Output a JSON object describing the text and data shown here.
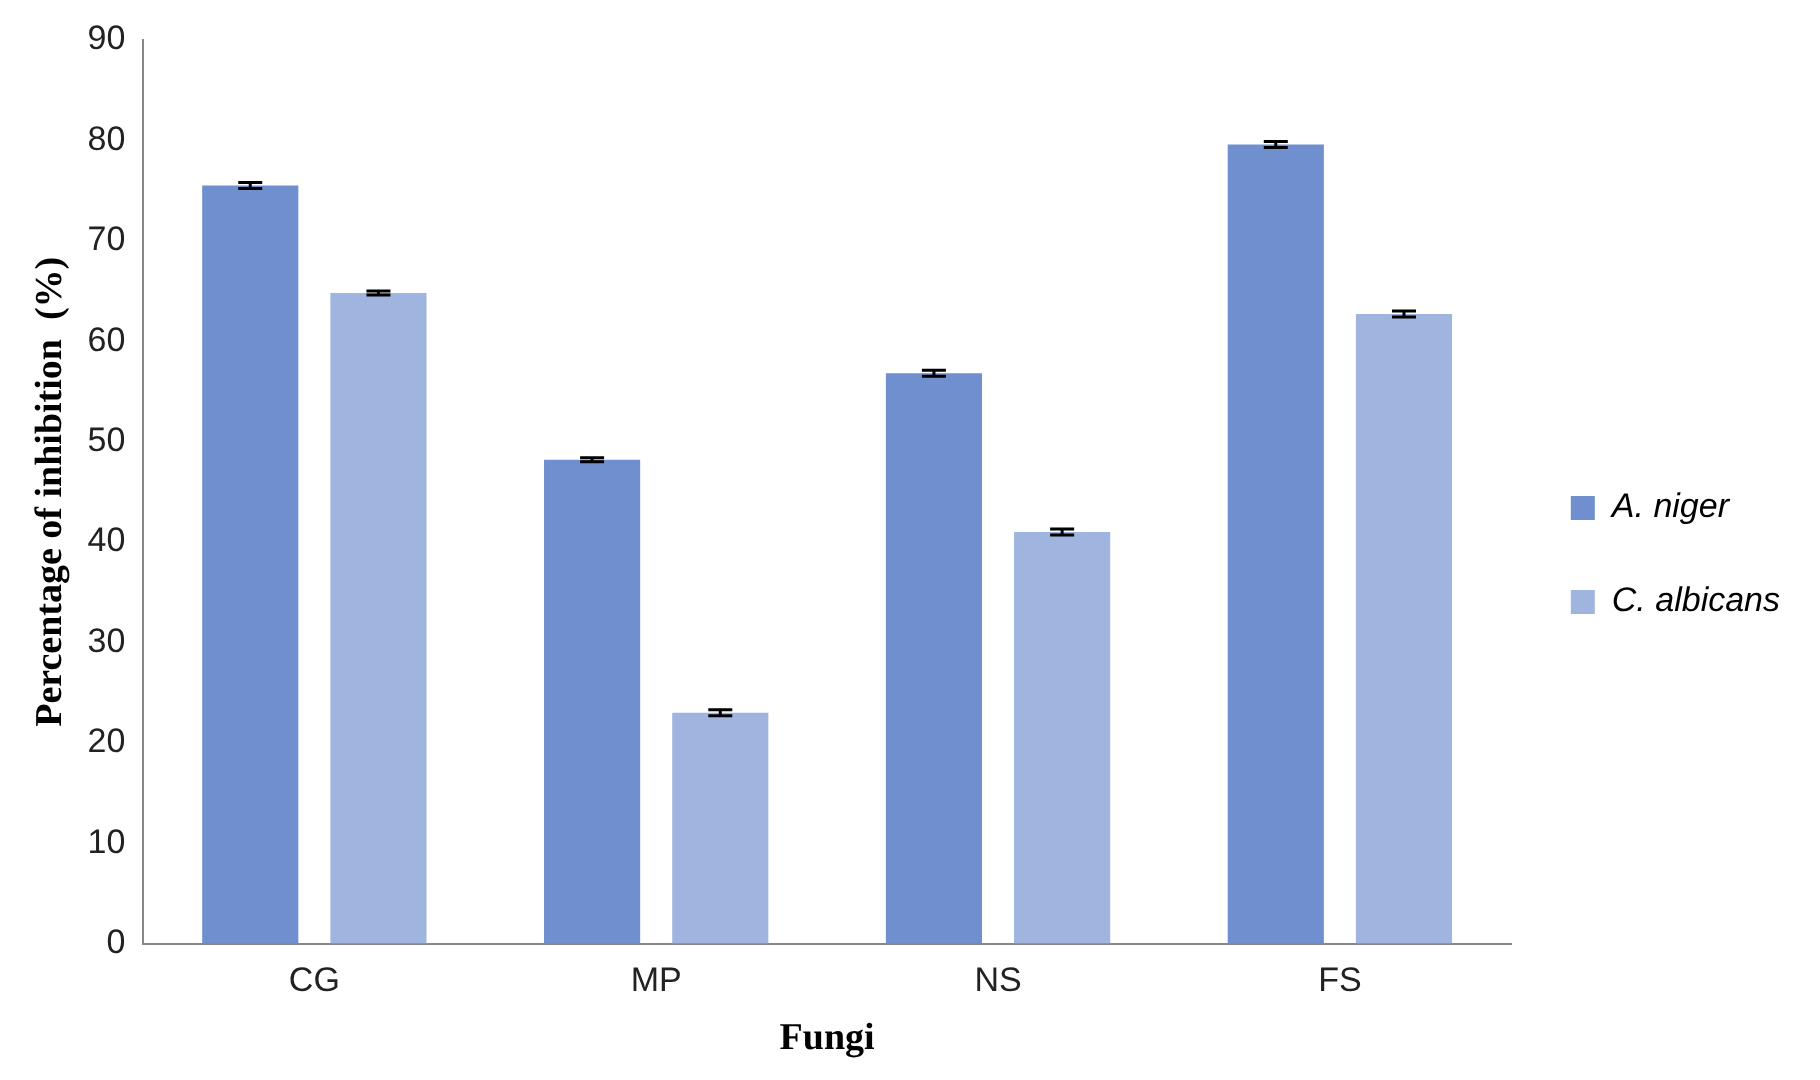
{
  "chart_data": {
    "type": "bar",
    "xlabel": "Fungi",
    "ylabel": "Percentage of inhibition  (%)",
    "categories": [
      "CG",
      "MP",
      "NS",
      "FS"
    ],
    "series": [
      {
        "name": "A. niger",
        "color": "#6f8fcf",
        "values": [
          75.5,
          48.2,
          56.8,
          79.6
        ],
        "errors": [
          0.3,
          0.2,
          0.3,
          0.3
        ]
      },
      {
        "name": "C. albicans",
        "color": "#9fb5e0",
        "values": [
          64.8,
          23,
          41,
          62.7
        ],
        "errors": [
          0.2,
          0.3,
          0.3,
          0.3
        ]
      }
    ],
    "ylim": [
      0,
      90
    ],
    "yticks": [
      0,
      10,
      20,
      30,
      40,
      50,
      60,
      70,
      80,
      90
    ],
    "grid": false,
    "legend": "right"
  }
}
